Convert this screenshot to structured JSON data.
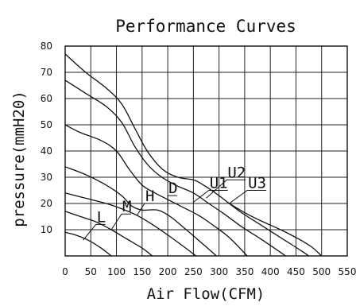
{
  "chart_data": {
    "type": "line",
    "title": "Performance Curves",
    "xlabel": "Air Flow(CFM)",
    "ylabel": "pressure(mmH20)",
    "xlim": [
      0,
      550
    ],
    "ylim": [
      0,
      80
    ],
    "x_ticks": [
      "0",
      "50",
      "100",
      "150",
      "200",
      "250",
      "300",
      "350",
      "400",
      "450",
      "500",
      "550"
    ],
    "y_ticks": [
      "10",
      "20",
      "30",
      "40",
      "50",
      "60",
      "70",
      "80"
    ],
    "grid": true,
    "series": [
      {
        "name": "",
        "points": [
          [
            0,
            9
          ],
          [
            20,
            8
          ],
          [
            45,
            6
          ],
          [
            70,
            3
          ],
          [
            90,
            0
          ]
        ]
      },
      {
        "name": "L",
        "points": [
          [
            0,
            17
          ],
          [
            30,
            15
          ],
          [
            60,
            13
          ],
          [
            90,
            10
          ],
          [
            120,
            6.5
          ],
          [
            150,
            3
          ],
          [
            170,
            0
          ]
        ]
      },
      {
        "name": "M",
        "points": [
          [
            0,
            24
          ],
          [
            40,
            22
          ],
          [
            80,
            20
          ],
          [
            110,
            18
          ],
          [
            140,
            15.5
          ],
          [
            170,
            12
          ],
          [
            200,
            8
          ],
          [
            235,
            3
          ],
          [
            255,
            0
          ]
        ]
      },
      {
        "name": "H",
        "points": [
          [
            0,
            34
          ],
          [
            40,
            31
          ],
          [
            80,
            27
          ],
          [
            110,
            23
          ],
          [
            130,
            19
          ],
          [
            150,
            17.5
          ],
          [
            180,
            17.5
          ],
          [
            205,
            15
          ],
          [
            230,
            11
          ],
          [
            260,
            6
          ],
          [
            295,
            0
          ]
        ]
      },
      {
        "name": "D",
        "points": [
          [
            0,
            50
          ],
          [
            30,
            47
          ],
          [
            70,
            44
          ],
          [
            100,
            40
          ],
          [
            125,
            33
          ],
          [
            150,
            27
          ],
          [
            175,
            24
          ],
          [
            200,
            21.5
          ],
          [
            230,
            18.5
          ],
          [
            260,
            15.5
          ],
          [
            290,
            11.5
          ],
          [
            320,
            7
          ],
          [
            355,
            0
          ]
        ]
      },
      {
        "name": "U1",
        "points": [
          [
            0,
            67
          ],
          [
            40,
            62
          ],
          [
            80,
            57
          ],
          [
            110,
            51
          ],
          [
            135,
            42
          ],
          [
            160,
            35
          ],
          [
            185,
            30.5
          ],
          [
            215,
            27
          ],
          [
            250,
            24
          ],
          [
            280,
            20
          ],
          [
            310,
            16
          ],
          [
            345,
            11
          ],
          [
            385,
            6
          ],
          [
            430,
            0
          ]
        ]
      },
      {
        "name": "U2",
        "points": [
          [
            0,
            77
          ],
          [
            40,
            70
          ],
          [
            80,
            64
          ],
          [
            110,
            58
          ],
          [
            135,
            49
          ],
          [
            160,
            40
          ],
          [
            190,
            33
          ],
          [
            220,
            30
          ],
          [
            250,
            29
          ],
          [
            270,
            27
          ],
          [
            300,
            23
          ],
          [
            340,
            17
          ],
          [
            380,
            12
          ],
          [
            420,
            7
          ],
          [
            460,
            2
          ],
          [
            475,
            0
          ]
        ]
      },
      {
        "name": "U3",
        "points": [
          [
            320,
            20
          ],
          [
            350,
            16.5
          ],
          [
            380,
            13.5
          ],
          [
            420,
            10
          ],
          [
            455,
            6.5
          ],
          [
            480,
            3.5
          ],
          [
            500,
            0
          ]
        ]
      }
    ],
    "annotations": [
      {
        "label": "L",
        "target": [
          35,
          6
        ],
        "text_at": [
          60,
          12
        ]
      },
      {
        "label": "M",
        "target": [
          90,
          10
        ],
        "text_at": [
          110,
          16
        ]
      },
      {
        "label": "H",
        "target": [
          140,
          15.5
        ],
        "text_at": [
          155,
          20
        ]
      },
      {
        "label": "D",
        "target": [
          200,
          17.5
        ],
        "text_at": [
          200,
          23
        ]
      },
      {
        "label": "U1",
        "target": [
          250,
          20.5
        ],
        "text_at": [
          280,
          25
        ]
      },
      {
        "label": "U2",
        "target": [
          275,
          22
        ],
        "text_at": [
          315,
          29
        ]
      },
      {
        "label": "U3",
        "target": [
          320,
          20
        ],
        "text_at": [
          355,
          25
        ]
      }
    ]
  }
}
